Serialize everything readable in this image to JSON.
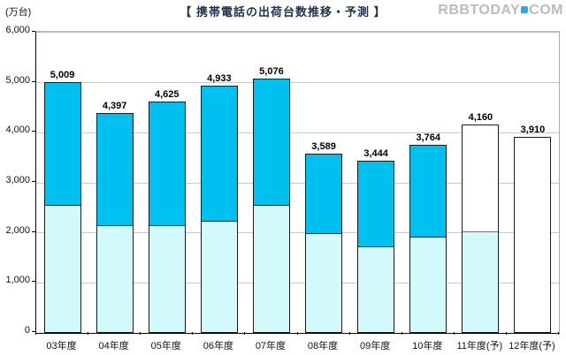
{
  "page": {
    "watermark": {
      "left": "RBBTODAY",
      "right": "COM",
      "dot_color": "#2aabe4"
    }
  },
  "chart_data": {
    "type": "bar",
    "stacked": true,
    "title": "【 携帯電話の出荷台数推移・予測 】",
    "ylabel": "(万台)",
    "xlabel": "",
    "ylim": [
      0,
      6000
    ],
    "ytick_step": 1000,
    "ytick_labels": [
      "0",
      "1,000",
      "2,000",
      "3,000",
      "4,000",
      "5,000",
      "6,000"
    ],
    "grid": true,
    "legend": "none",
    "categories": [
      "03年度",
      "04年度",
      "05年度",
      "06年度",
      "07年度",
      "08年度",
      "09年度",
      "10年度",
      "11年度(予)",
      "12年度(予)"
    ],
    "totals": [
      5009,
      4397,
      4625,
      4933,
      5076,
      3589,
      3444,
      3764,
      4160,
      3910
    ],
    "total_labels": [
      "5,009",
      "4,397",
      "4,625",
      "4,933",
      "5,076",
      "3,589",
      "3,444",
      "3,764",
      "4,160",
      "3,910"
    ],
    "series": [
      {
        "name": "lower-segment",
        "color": "#d2f9fb",
        "values": [
          2550,
          2130,
          2130,
          2220,
          2540,
          1980,
          1710,
          1910,
          2010,
          0
        ]
      },
      {
        "name": "upper-segment",
        "color": "#00c0f0",
        "values": [
          2459,
          2267,
          2495,
          2713,
          2536,
          1609,
          1734,
          1854,
          2150,
          3910
        ]
      }
    ],
    "forecast": [
      false,
      false,
      false,
      false,
      false,
      false,
      false,
      false,
      true,
      true
    ],
    "forecast_fill": "#ffffff",
    "colors": {
      "upper": "#00c0f0",
      "lower": "#d2f9fb",
      "grid": "#c9c9c9",
      "axis": "#000000",
      "bar_outline": "#1a1a1a",
      "title": "#1f3050",
      "watermark": "#b6bcc0"
    }
  }
}
